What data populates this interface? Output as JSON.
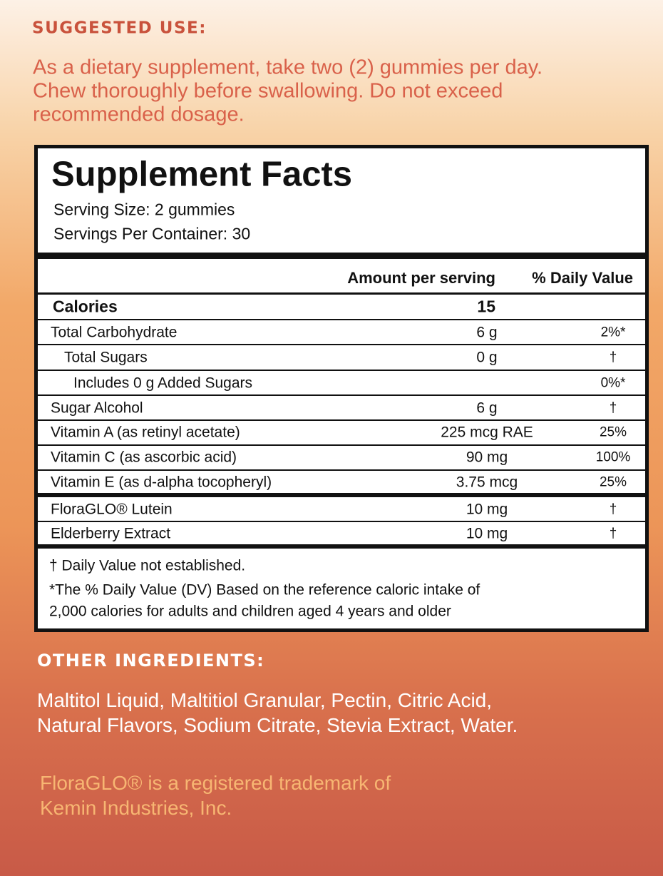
{
  "suggested_use": {
    "heading": "SUGGESTED USE:",
    "lines": [
      "As a dietary supplement, take two (2) gummies per day.",
      "Chew thoroughly before swallowing. Do not exceed",
      "recommended dosage."
    ]
  },
  "supplement_facts": {
    "title": "Supplement Facts",
    "serving_size": "Serving Size: 2 gummies",
    "servings_per_container": "Servings Per Container: 30",
    "header": [
      "Amount per serving",
      "% Daily Value"
    ],
    "rows": [
      [
        "Calories",
        "15",
        null
      ],
      [
        "Total Carbohydrate",
        "6 g",
        "2%*"
      ],
      [
        "Total Sugars",
        "0 g",
        "†"
      ],
      [
        "Includes 0 g Added Sugars",
        null,
        "0%*"
      ],
      [
        "Sugar Alcohol",
        "6 g",
        "†"
      ],
      [
        "Vitamin A (as retinyl acetate)",
        "225 mcg RAE",
        "25%"
      ],
      [
        "Vitamin C (as ascorbic acid)",
        "90 mg",
        "100%"
      ],
      [
        "Vitamin E (as d-alpha tocopheryl)",
        "3.75 mcg",
        "25%"
      ],
      [
        "FloraGLO® Lutein",
        "10 mg",
        "†"
      ],
      [
        "Elderberry Extract",
        "10 mg",
        "†"
      ]
    ],
    "footnotes": [
      "† Daily Value not established.",
      "*The % Daily Value (DV) Based on the reference caloric intake of",
      "2,000 calories for adults and children aged 4 years and older"
    ]
  },
  "other_ingredients": {
    "heading": "OTHER INGREDIENTS:",
    "lines": [
      "Maltitol Liquid, Maltitiol Granular, Pectin, Citric Acid,",
      "Natural Flavors, Sodium Citrate, Stevia Extract, Water."
    ]
  },
  "trademark": {
    "lines": [
      "FloraGLO® is a registered trademark of",
      "Kemin Industries, Inc."
    ]
  }
}
